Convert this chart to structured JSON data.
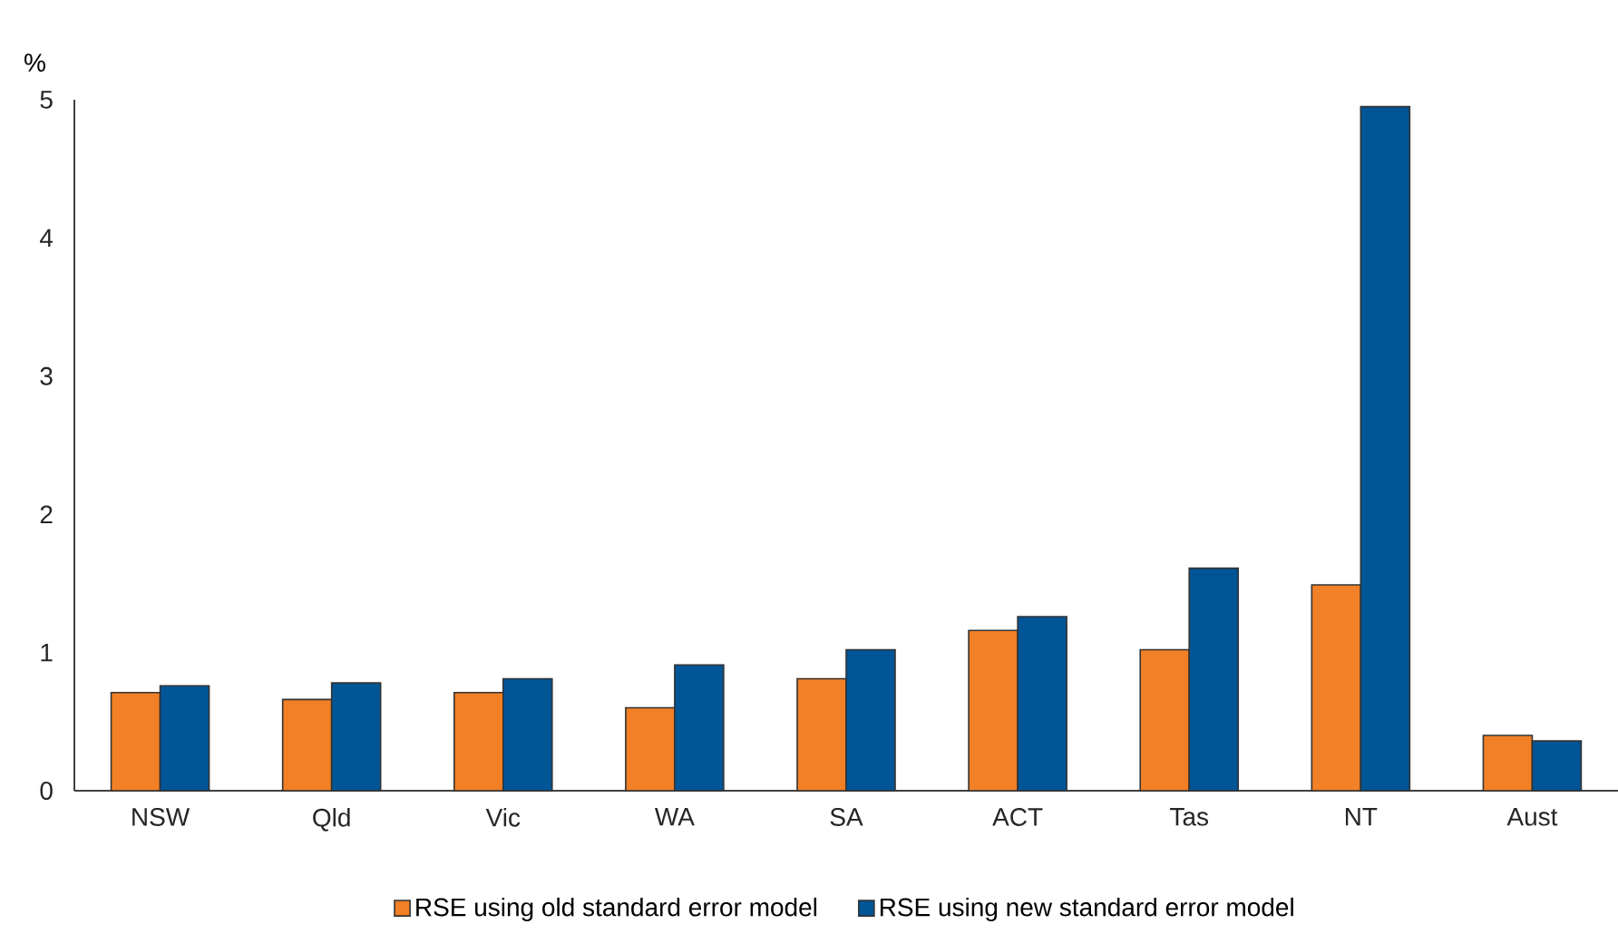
{
  "chart_data": {
    "type": "bar",
    "ylabel": "%",
    "categories": [
      "NSW",
      "Qld",
      "Vic",
      "WA",
      "SA",
      "ACT",
      "Tas",
      "NT",
      "Aust"
    ],
    "series": [
      {
        "name": "RSE using old standard error model",
        "color": "#f28026",
        "values": [
          0.71,
          0.66,
          0.71,
          0.6,
          0.81,
          1.16,
          1.02,
          1.49,
          0.4
        ]
      },
      {
        "name": "RSE using new standard error model",
        "color": "#005596",
        "values": [
          0.76,
          0.78,
          0.81,
          0.91,
          1.02,
          1.26,
          1.61,
          4.95,
          0.36
        ]
      }
    ],
    "ylim": [
      0,
      5
    ],
    "yticks": [
      0,
      1,
      2,
      3,
      4,
      5
    ],
    "legend": "bottom"
  }
}
